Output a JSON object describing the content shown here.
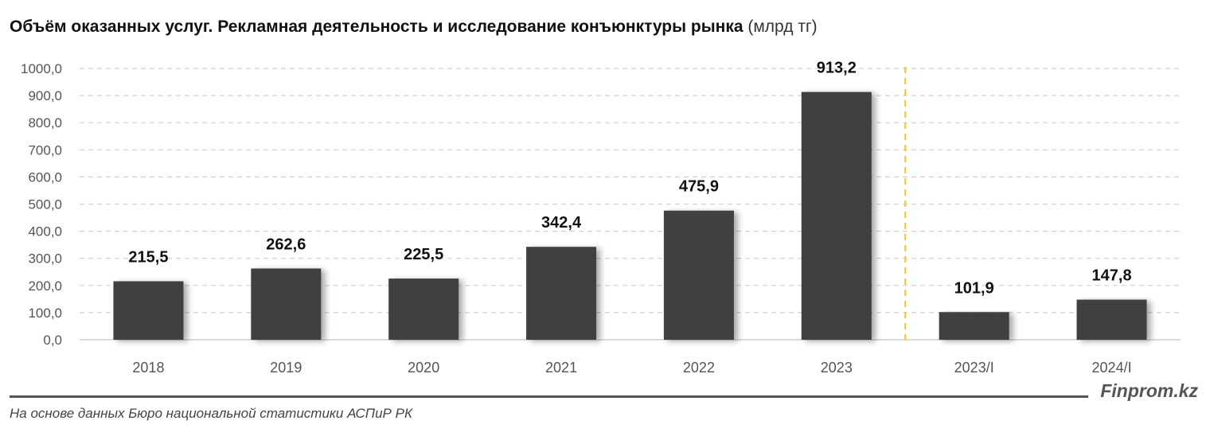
{
  "header": {
    "title": "Объём оказанных услуг. Рекламная деятельность и исследование конъюнктуры рынка",
    "unit": "(млрд тг)"
  },
  "footer": {
    "source": "На основе данных Бюро национальной статистики АСПиР РК",
    "brand": "Finprom.kz"
  },
  "colors": {
    "bar": "#404040",
    "grid": "#d0d0d0",
    "divider": "#f5c518",
    "label": "#111111",
    "axis_text": "#555555"
  },
  "chart_data": {
    "type": "bar",
    "title": "Объём оказанных услуг. Рекламная деятельность и исследование конъюнктуры рынка (млрд тг)",
    "categories": [
      "2018",
      "2019",
      "2020",
      "2021",
      "2022",
      "2023",
      "2023/I",
      "2024/I"
    ],
    "values": [
      215.5,
      262.6,
      225.5,
      342.4,
      475.9,
      913.2,
      101.9,
      147.8
    ],
    "value_labels": [
      "215,5",
      "262,6",
      "225,5",
      "342,4",
      "475,9",
      "913,2",
      "101,9",
      "147,8"
    ],
    "xlabel": "",
    "ylabel": "",
    "ylim": [
      0,
      1000
    ],
    "yticks": [
      "0,0",
      "100,0",
      "200,0",
      "300,0",
      "400,0",
      "500,0",
      "600,0",
      "700,0",
      "800,0",
      "900,0",
      "1000,0"
    ],
    "grid": true,
    "grid_style": "dashed",
    "legend": "none",
    "divider_after_index": 5
  }
}
